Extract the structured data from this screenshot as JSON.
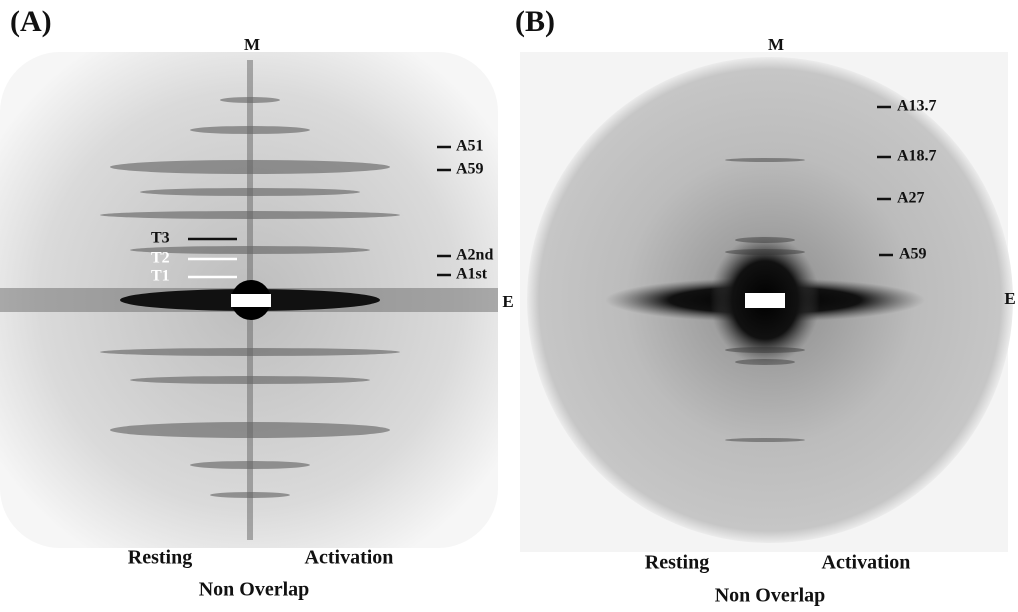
{
  "panels": [
    {
      "label": "(A)",
      "meridian": "M",
      "equator": "E",
      "markers": [
        "A51",
        "A59",
        "A2nd",
        "A1st"
      ],
      "t_markers": [
        "T3",
        "T2",
        "T1"
      ],
      "left": "Resting",
      "right": "Activation",
      "caption": "Non Overlap"
    },
    {
      "label": "(B)",
      "meridian": "M",
      "equator": "E",
      "markers": [
        "A13.7",
        "A18.7",
        "A27",
        "A59"
      ],
      "left": "Resting",
      "right": "Activation",
      "caption": "Non Overlap"
    }
  ]
}
